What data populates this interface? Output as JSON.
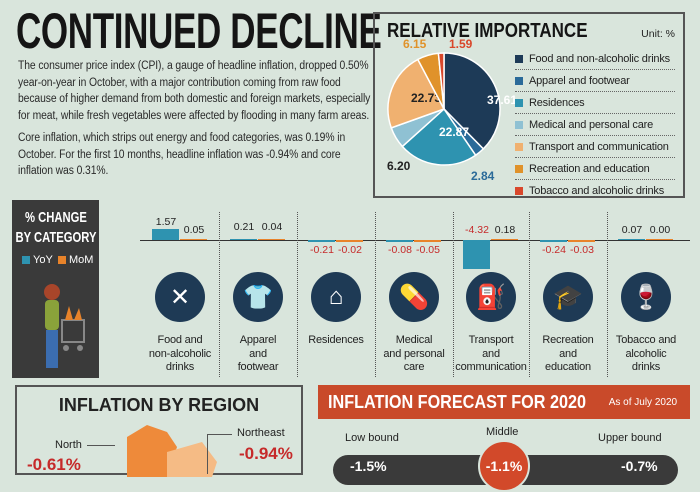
{
  "title": "CONTINUED DECLINE",
  "paragraphs": [
    "The consumer price index (CPI), a gauge of headline inflation, dropped 0.50% year-on-year in October, with a major contribution coming from raw food because of higher demand from both domestic and foreign markets, especially for meat, while fresh vegetables were affected by flooding in many farm areas.",
    "Core inflation, which strips out energy and food categories, was 0.19% in October. For the first 10 months, headline inflation was -0.94% and core inflation was 0.31%."
  ],
  "relative_importance": {
    "title": "RELATIVE IMPORTANCE",
    "unit": "Unit: %"
  },
  "chart_data": [
    {
      "type": "pie",
      "title": "RELATIVE IMPORTANCE",
      "unit": "%",
      "legend": "right",
      "slices": [
        {
          "label": "Food and non-alcoholic drinks",
          "value": 37.61,
          "color": "#1d3a57"
        },
        {
          "label": "Apparel and footwear",
          "value": 2.84,
          "color": "#2a6a99"
        },
        {
          "label": "Residences",
          "value": 22.87,
          "color": "#2e93b0"
        },
        {
          "label": "Medical and personal care",
          "value": 6.2,
          "color": "#8fc1d3"
        },
        {
          "label": "Transport and communication",
          "value": 22.73,
          "color": "#f0b170"
        },
        {
          "label": "Recreation and education",
          "value": 6.15,
          "color": "#e0922a"
        },
        {
          "label": "Tobacco and alcoholic drinks",
          "value": 1.59,
          "color": "#d9472b"
        }
      ]
    },
    {
      "type": "bar",
      "title": "% CHANGE BY CATEGORY",
      "categories": [
        "Food and non-alcoholic drinks",
        "Apparel and footwear",
        "Residences",
        "Medical and personal care",
        "Transport and communication",
        "Recreation and education",
        "Tobacco and alcoholic drinks"
      ],
      "series": [
        {
          "name": "YoY",
          "color": "#2e93b0",
          "values": [
            1.57,
            0.21,
            -0.21,
            -0.08,
            -4.32,
            -0.24,
            0.07
          ],
          "labels": [
            "1.57",
            "0.21",
            "-0.21",
            "-0.08",
            "-4.32",
            "-0.24",
            "0.07"
          ]
        },
        {
          "name": "MoM",
          "color": "#e8832a",
          "values": [
            0.05,
            0.04,
            -0.02,
            -0.05,
            0.18,
            -0.03,
            0.0
          ],
          "labels": [
            "0.05",
            "0.04",
            "-0.02",
            "-0.05",
            "0.18",
            "-0.03",
            "0.00"
          ]
        }
      ]
    }
  ],
  "change": {
    "title_line1": "% CHANGE",
    "title_line2": "BY CATEGORY",
    "yoy": "YoY",
    "mom": "MoM",
    "labels": [
      [
        "Food and",
        "non-alcoholic",
        "drinks"
      ],
      [
        "Apparel",
        "and",
        "footwear"
      ],
      [
        "Residences"
      ],
      [
        "Medical",
        "and personal",
        "care"
      ],
      [
        "Transport",
        "and",
        "communication"
      ],
      [
        "Recreation",
        "and",
        "education"
      ],
      [
        "Tobacco and",
        "alcoholic",
        "drinks"
      ]
    ],
    "icons": [
      "fork-knife-icon",
      "tshirt-icon",
      "house-icon",
      "pills-icon",
      "fuel-pump-icon",
      "graduation-cap-icon",
      "wine-bottle-icon"
    ]
  },
  "region": {
    "title": "INFLATION BY REGION",
    "north_label": "North",
    "north_value": "-0.61%",
    "northeast_label": "Northeast",
    "northeast_value": "-0.94%"
  },
  "forecast": {
    "title": "INFLATION FORECAST FOR 2020",
    "subtitle": "As of July 2020",
    "low_label": "Low bound",
    "middle_label": "Middle",
    "upper_label": "Upper bound",
    "low_value": "-1.5%",
    "middle_value": "-1.1%",
    "upper_value": "-0.7%"
  }
}
